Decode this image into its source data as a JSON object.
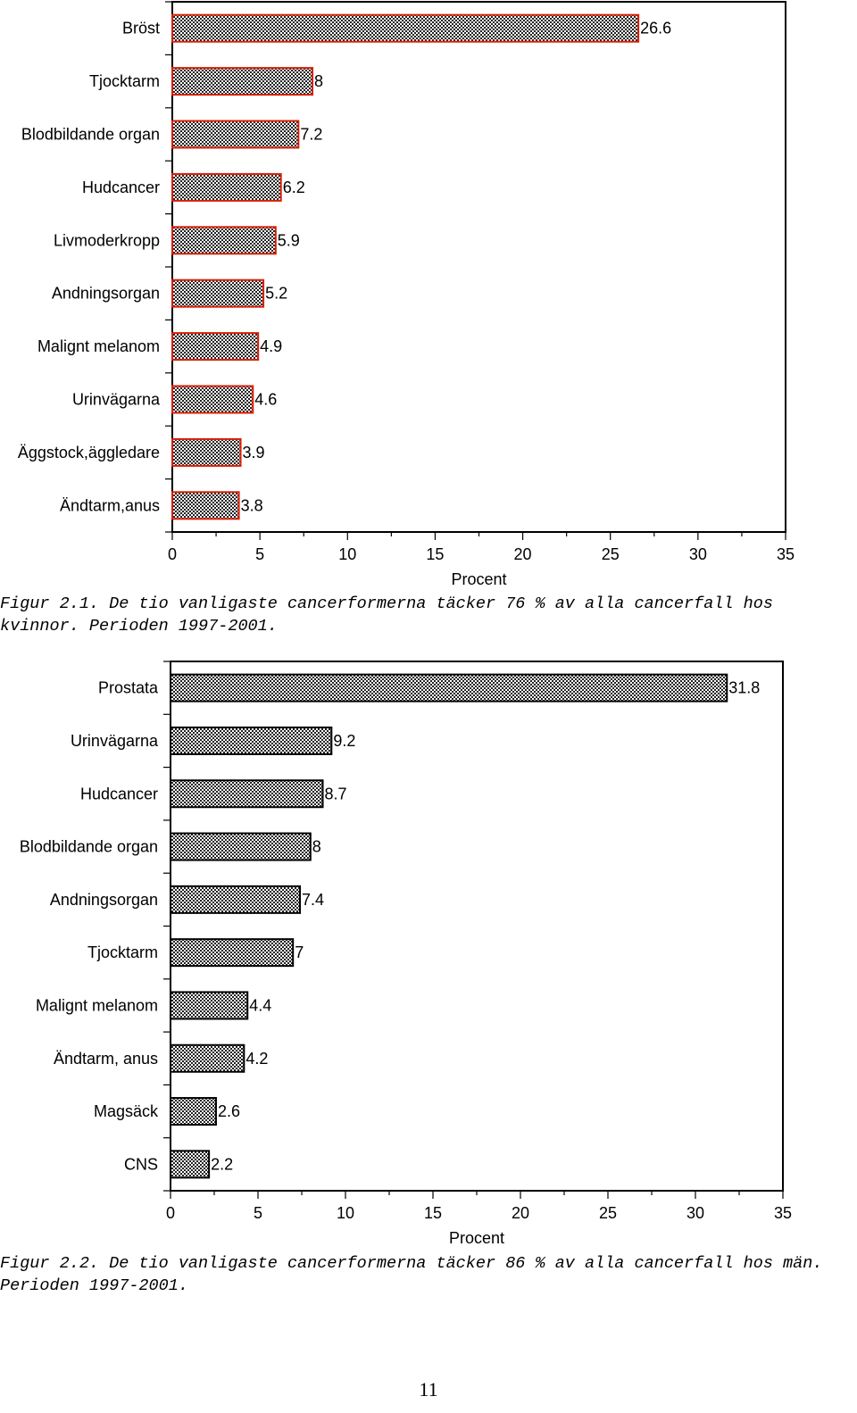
{
  "chart_data": [
    {
      "type": "bar",
      "orientation": "horizontal",
      "categories": [
        "Bröst",
        "Tjocktarm",
        "Blodbildande organ",
        "Hudcancer",
        "Livmoderkropp",
        "Andningsorgan",
        "Malignt melanom",
        "Urinvägarna",
        "Äggstock,äggledare",
        "Ändtarm,anus"
      ],
      "values": [
        26.6,
        8,
        7.2,
        6.2,
        5.9,
        5.2,
        4.9,
        4.6,
        3.9,
        3.8
      ],
      "value_labels": [
        "26.6",
        "8",
        "7.2",
        "6.2",
        "5.9",
        "5.2",
        "4.9",
        "4.6",
        "3.9",
        "3.8"
      ],
      "xlabel": "Procent",
      "xlim": [
        0,
        35
      ],
      "xticks": [
        "0",
        "5",
        "10",
        "15",
        "20",
        "25",
        "30",
        "35"
      ],
      "grid": false,
      "bar_border_color": "#d81e05",
      "bar_pattern": "checkered"
    },
    {
      "type": "bar",
      "orientation": "horizontal",
      "categories": [
        "Prostata",
        "Urinvägarna",
        "Hudcancer",
        "Blodbildande organ",
        "Andningsorgan",
        "Tjocktarm",
        "Malignt melanom",
        "Ändtarm, anus",
        "Magsäck",
        "CNS"
      ],
      "values": [
        31.8,
        9.2,
        8.7,
        8,
        7.4,
        7,
        4.4,
        4.2,
        2.6,
        2.2
      ],
      "value_labels": [
        "31.8",
        "9.2",
        "8.7",
        "8",
        "7.4",
        "7",
        "4.4",
        "4.2",
        "2.6",
        "2.2"
      ],
      "xlabel": "Procent",
      "xlim": [
        0,
        35
      ],
      "xticks": [
        "0",
        "5",
        "10",
        "15",
        "20",
        "25",
        "30",
        "35"
      ],
      "grid": false,
      "bar_border_color": "#000000",
      "bar_pattern": "checkered"
    }
  ],
  "captions": {
    "figure1": "Figur 2.1. De tio vanligaste cancerformerna täcker 76 % av alla cancerfall hos kvinnor. Perioden 1997-2001.",
    "figure2": "Figur 2.2. De tio vanligaste cancerformerna täcker 86 % av alla cancerfall hos män. Perioden 1997-2001."
  },
  "page_number": "11"
}
